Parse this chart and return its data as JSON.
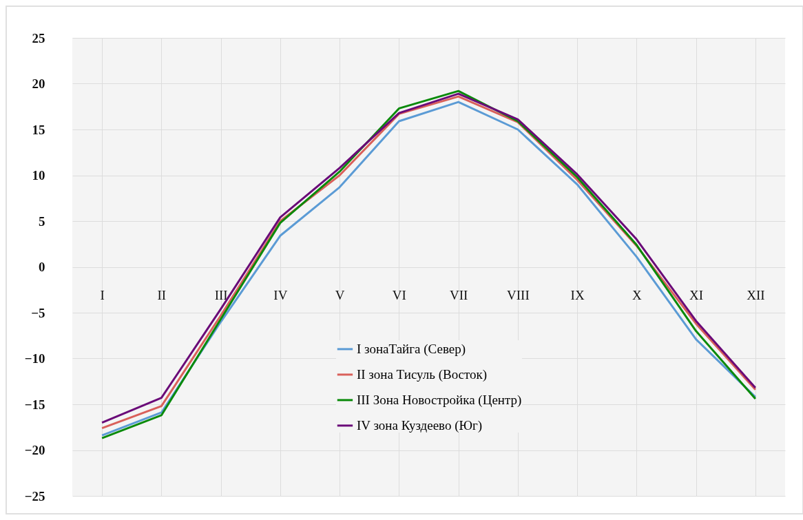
{
  "chart_data": {
    "type": "line",
    "categories": [
      "I",
      "II",
      "III",
      "IV",
      "V",
      "VI",
      "VII",
      "VIII",
      "IX",
      "X",
      "XI",
      "XII"
    ],
    "series": [
      {
        "name": "I зонаТайга (Север)",
        "color": "#5b9bd5",
        "values": [
          -18.4,
          -15.9,
          -6.0,
          3.4,
          8.7,
          15.9,
          18.0,
          15.0,
          9.0,
          1.1,
          -7.9,
          -14.2
        ]
      },
      {
        "name": "II зона Тисуль (Восток)",
        "color": "#d9605a",
        "values": [
          -17.6,
          -15.2,
          -5.3,
          5.0,
          10.0,
          16.7,
          18.6,
          15.8,
          9.5,
          2.3,
          -6.2,
          -13.4
        ]
      },
      {
        "name": "III Зона Новостройка (Центр)",
        "color": "#0a8a0a",
        "values": [
          -18.7,
          -16.2,
          -5.7,
          4.8,
          10.4,
          17.3,
          19.2,
          15.9,
          9.8,
          2.4,
          -7.0,
          -14.4
        ]
      },
      {
        "name": "IV зона Куздеево (Юг)",
        "color": "#6a0a78",
        "values": [
          -17.0,
          -14.3,
          -4.6,
          5.4,
          10.8,
          16.8,
          18.9,
          16.1,
          10.1,
          3.0,
          -5.9,
          -13.2
        ]
      }
    ],
    "ylim": [
      -25,
      25
    ],
    "yticks": [
      -25,
      -20,
      -15,
      -10,
      -5,
      0,
      5,
      10,
      15,
      20,
      25
    ],
    "grid": true,
    "legend": "bottom",
    "marker": "none",
    "line_style": "solid"
  }
}
